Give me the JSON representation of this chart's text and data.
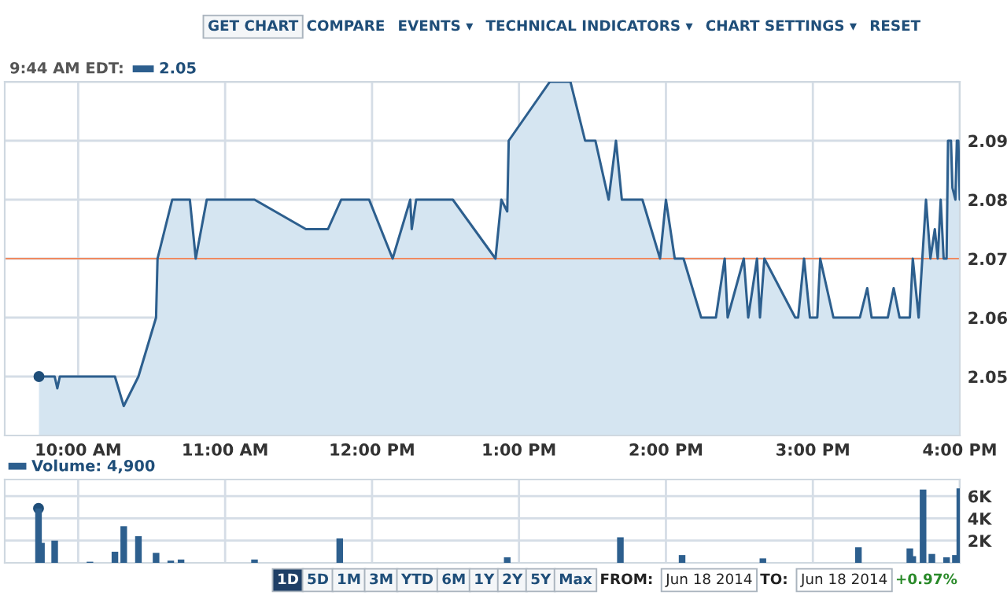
{
  "chart_data": [
    {
      "type": "area",
      "title": "9:44 AM EDT:",
      "subtitle": "2.05",
      "xlim": [
        9.5,
        16.0
      ],
      "xticks": [
        {
          "value": 10,
          "label": "10:00 AM"
        },
        {
          "value": 11,
          "label": "11:00 AM"
        },
        {
          "value": 12,
          "label": "12:00 PM"
        },
        {
          "value": 13,
          "label": "1:00 PM"
        },
        {
          "value": 14,
          "label": "2:00 PM"
        },
        {
          "value": 15,
          "label": "3:00 PM"
        },
        {
          "value": 16,
          "label": "4:00 PM"
        }
      ],
      "ylim": [
        2.04,
        2.1
      ],
      "yticks": [
        2.05,
        2.06,
        2.07,
        2.08,
        2.09,
        {
          "value": 2.1,
          "label": null
        }
      ],
      "grid": true,
      "ref_lines": [
        {
          "axis": "y",
          "value": 2.07,
          "color": "#f08a60"
        }
      ],
      "annotations": [
        "GET CHART",
        "COMPARE",
        "EVENTS ▾",
        "TECHNICAL INDICATORS ▾",
        "CHART SETTINGS ▾",
        "RESET"
      ],
      "series": [
        {
          "color": "#2d5f8e",
          "x": [
            9.733,
            9.84,
            9.858,
            9.875,
            10.25,
            10.31,
            10.41,
            10.53,
            10.54,
            10.64,
            10.76,
            10.8,
            10.875,
            11.2,
            11.55,
            11.7,
            11.79,
            11.98,
            12.14,
            12.26,
            12.27,
            12.3,
            12.55,
            12.84,
            12.88,
            12.92,
            12.93,
            13.21,
            13.35,
            13.45,
            13.52,
            13.61,
            13.66,
            13.7,
            13.84,
            13.96,
            14.0,
            14.06,
            14.12,
            14.24,
            14.34,
            14.4,
            14.42,
            14.53,
            14.56,
            14.62,
            14.64,
            14.67,
            14.88,
            14.9,
            14.94,
            14.98,
            15.03,
            15.05,
            15.14,
            15.32,
            15.37,
            15.4,
            15.51,
            15.55,
            15.59,
            15.66,
            15.68,
            15.72,
            15.77,
            15.8,
            15.83,
            15.85,
            15.87,
            15.89,
            15.91,
            15.92,
            15.94,
            15.95,
            15.97,
            15.98,
            15.99,
            16.0
          ],
          "values": [
            2.05,
            2.05,
            2.048,
            2.05,
            2.05,
            2.045,
            2.05,
            2.06,
            2.07,
            2.08,
            2.08,
            2.07,
            2.08,
            2.08,
            2.075,
            2.075,
            2.08,
            2.08,
            2.07,
            2.08,
            2.075,
            2.08,
            2.08,
            2.07,
            2.08,
            2.078,
            2.09,
            2.1,
            2.1,
            2.09,
            2.09,
            2.08,
            2.09,
            2.08,
            2.08,
            2.07,
            2.08,
            2.07,
            2.07,
            2.06,
            2.06,
            2.07,
            2.06,
            2.07,
            2.06,
            2.07,
            2.06,
            2.07,
            2.06,
            2.06,
            2.07,
            2.06,
            2.06,
            2.07,
            2.06,
            2.06,
            2.065,
            2.06,
            2.06,
            2.065,
            2.06,
            2.06,
            2.07,
            2.06,
            2.08,
            2.07,
            2.075,
            2.07,
            2.08,
            2.07,
            2.07,
            2.09,
            2.09,
            2.082,
            2.08,
            2.09,
            2.09,
            2.08
          ]
        },
        {
          "type": "scatter",
          "color": "#1f4e79",
          "x": [
            9.733
          ],
          "values": [
            2.05
          ]
        }
      ]
    },
    {
      "type": "bar",
      "title": "Volume: 4,900",
      "xlim": [
        9.5,
        16.0
      ],
      "xticks": [
        {
          "value": 10,
          "label": null
        },
        {
          "value": 11,
          "label": null
        },
        {
          "value": 12,
          "label": null
        },
        {
          "value": 13,
          "label": null
        },
        {
          "value": 14,
          "label": null
        },
        {
          "value": 15,
          "label": null
        },
        {
          "value": 16,
          "label": null
        }
      ],
      "ylim": [
        0,
        7500
      ],
      "yticks": [
        {
          "value": 2000,
          "label": "2K"
        },
        {
          "value": 4000,
          "label": "4K"
        },
        {
          "value": 6000,
          "label": "6K"
        }
      ],
      "tick_labels": "y",
      "grid": true,
      "annotations": [
        "1D",
        "5D",
        "1M",
        "3M",
        "YTD",
        "6M",
        "1Y",
        "2Y",
        "5Y",
        "Max",
        "FROM:",
        "Jun 18 2014",
        "TO:",
        "Jun 18 2014",
        "+0.97%"
      ],
      "series": [
        {
          "color": "#2d5f8e",
          "x": [
            9.73,
            9.75,
            9.84,
            10.08,
            10.25,
            10.31,
            10.41,
            10.53,
            10.63,
            10.7,
            11.2,
            11.78,
            12.92,
            13.69,
            14.11,
            14.66,
            15.31,
            15.66,
            15.68,
            15.75,
            15.81,
            15.91,
            15.97,
            16.0
          ],
          "values": [
            4900,
            1800,
            2000,
            100,
            1000,
            3300,
            2400,
            900,
            200,
            300,
            300,
            2200,
            500,
            2300,
            700,
            400,
            1400,
            1300,
            600,
            6600,
            800,
            500,
            700,
            6700
          ]
        },
        {
          "type": "scatter",
          "color": "#1f4e79",
          "x": [
            9.73
          ],
          "values": [
            4900
          ]
        }
      ]
    }
  ]
}
